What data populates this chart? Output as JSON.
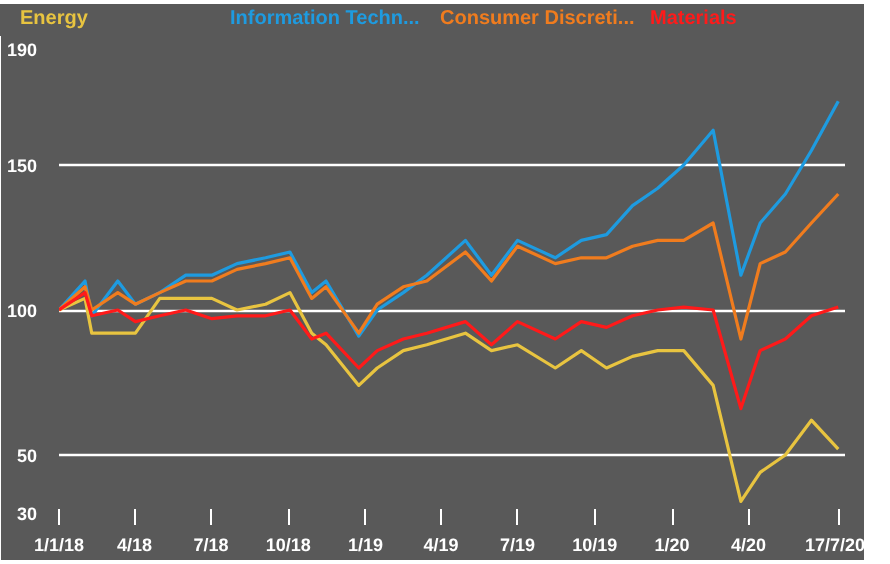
{
  "chart_data": {
    "type": "line",
    "grid": "y",
    "line_style": "solid",
    "marker": "none",
    "x": [
      "2018-01-01",
      "2018-02-01",
      "2018-02-09",
      "2018-03-12",
      "2018-04-02",
      "2018-05-01",
      "2018-06-01",
      "2018-07-02",
      "2018-08-01",
      "2018-09-04",
      "2018-10-03",
      "2018-10-29",
      "2018-11-15",
      "2018-12-24",
      "2019-01-15",
      "2019-02-15",
      "2019-03-15",
      "2019-04-30",
      "2019-05-31",
      "2019-07-01",
      "2019-08-15",
      "2019-09-15",
      "2019-10-15",
      "2019-11-15",
      "2019-12-15",
      "2020-01-15",
      "2020-02-19",
      "2020-03-23",
      "2020-04-15",
      "2020-05-15",
      "2020-06-15",
      "2020-07-17"
    ],
    "series": [
      {
        "name": "Energy",
        "color": "#e8c440",
        "values": [
          100,
          104,
          92,
          92,
          92,
          104,
          104,
          104,
          100,
          102,
          106,
          92,
          88,
          74,
          80,
          86,
          88,
          92,
          86,
          88,
          80,
          86,
          80,
          84,
          86,
          86,
          74,
          34,
          44,
          50,
          62,
          52
        ]
      },
      {
        "name": "Information Techn...",
        "color": "#1e9be0",
        "values": [
          100,
          110,
          98,
          110,
          102,
          106,
          112,
          112,
          116,
          118,
          120,
          106,
          110,
          91,
          100,
          106,
          112,
          124,
          112,
          124,
          118,
          124,
          126,
          136,
          142,
          150,
          162,
          112,
          130,
          140,
          155,
          172
        ]
      },
      {
        "name": "Consumer Discreti...",
        "color": "#f07c1e",
        "values": [
          100,
          108,
          100,
          106,
          102,
          106,
          110,
          110,
          114,
          116,
          118,
          104,
          108,
          92,
          102,
          108,
          110,
          120,
          110,
          122,
          116,
          118,
          118,
          122,
          124,
          124,
          130,
          90,
          116,
          120,
          130,
          140
        ]
      },
      {
        "name": "Materials",
        "color": "#ff1a1a",
        "values": [
          100,
          106,
          98,
          100,
          96,
          98,
          100,
          97,
          98,
          98,
          100,
          90,
          92,
          80,
          86,
          90,
          92,
          96,
          88,
          96,
          90,
          96,
          94,
          98,
          100,
          101,
          100,
          66,
          86,
          90,
          98,
          101
        ]
      }
    ],
    "xlim": [
      "2018-01-01",
      "2020-07-25"
    ],
    "xticks": [
      {
        "value": "2018-01-01",
        "label": "1/1/18"
      },
      {
        "value": "2018-04-01",
        "label": "4/18"
      },
      {
        "value": "2018-07-01",
        "label": "7/18"
      },
      {
        "value": "2018-10-01",
        "label": "10/18"
      },
      {
        "value": "2019-01-01",
        "label": "1/19"
      },
      {
        "value": "2019-04-01",
        "label": "4/19"
      },
      {
        "value": "2019-07-01",
        "label": "7/19"
      },
      {
        "value": "2019-10-01",
        "label": "10/19"
      },
      {
        "value": "2020-01-01",
        "label": "1/20"
      },
      {
        "value": "2020-04-01",
        "label": "4/20"
      },
      {
        "value": "2020-07-17",
        "label": "17/7/20"
      }
    ],
    "ylim": [
      30,
      190
    ],
    "yticks": [
      30,
      50,
      100,
      150,
      190
    ]
  }
}
